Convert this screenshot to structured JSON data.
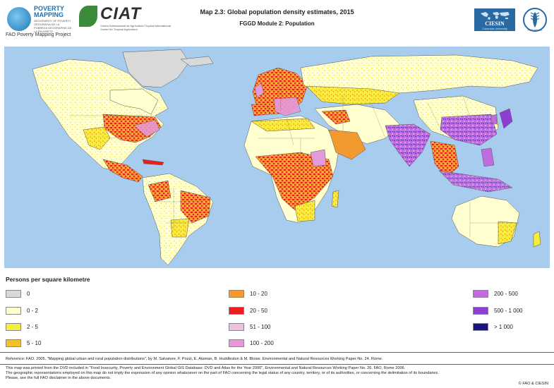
{
  "header": {
    "pm_logo": {
      "word1": "POVERTY",
      "word2": "MAPPING",
      "small_text": "GEOGRAPHY OF POVERTY GEOGRAFIA DE LA POBREZA GEOGRAPHIE DE LA PAUVRETE"
    },
    "fao_project": "FAO Poverty Mapping Project",
    "ciat": {
      "name": "CIAT",
      "sub": "Centro Internacional de Agricultura Tropical International Center for Tropical Agriculture"
    },
    "title": "Map 2.3: Global population density estimates, 2015",
    "subtitle": "FGGD Module 2: Population",
    "ciesin": {
      "name": "CIESIN",
      "uni": "Columbia University"
    },
    "fao_logo_text": "FIAT PANIS"
  },
  "legend": {
    "title": "Persons per square kilometre",
    "items": [
      {
        "label": "0",
        "color": "#d9d9d9"
      },
      {
        "label": "0 - 2",
        "color": "#ffffcf"
      },
      {
        "label": "2 - 5",
        "color": "#f5ee3a"
      },
      {
        "label": "5 - 10",
        "color": "#f2c12c"
      },
      {
        "label": "10 - 20",
        "color": "#f29a2f"
      },
      {
        "label": "20 - 50",
        "color": "#ee1e1e"
      },
      {
        "label": "51 - 100",
        "color": "#ecc1dd"
      },
      {
        "label": "100 - 200",
        "color": "#e49ad9"
      },
      {
        "label": "200 - 500",
        "color": "#c06be0"
      },
      {
        "label": "500 - 1 000",
        "color": "#8e3fd1"
      },
      {
        "label": "> 1 000",
        "color": "#1d1388"
      }
    ]
  },
  "colors": {
    "ocean": "#a8ccee",
    "border": "#555555"
  },
  "footer": {
    "reference": "Reference: FAO. 2005. \"Mapping global urban and rural population distributions\", by M. Salvatore, F. Pozzi, E. Ataman, B. Huddleston & M. Bloise. Environmental and Natural Resources Working Paper No. 24. Rome.",
    "note1": "This map was printed from the DVD included in \"Food Insecurity, Poverty and Environment Global GIS Database: DVD and Atlas for the Year 2000\", Environmental and Natural Resources Working Paper No. 26. FAO, Rome 2006.",
    "note2": "The geographic representations employed on this map do not imply the expression of any opinion whatsoever on the part of FAO concerning the legal status of any country, territory, or of its authorities, or concerning the delimitation of its boundaries.",
    "note3": "Please, see the full FAO disclaimer in the above documents.",
    "copyright": "© FAO & CIESIN"
  }
}
